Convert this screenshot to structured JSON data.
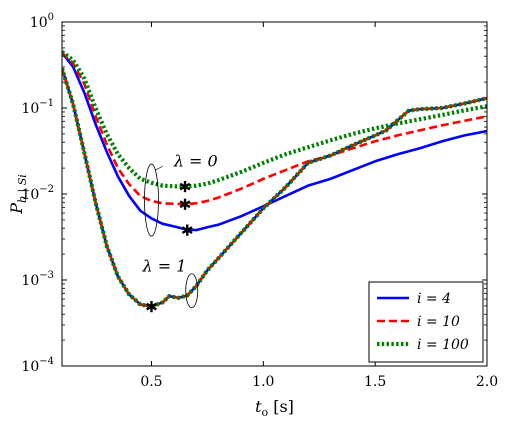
{
  "chart_data": {
    "type": "line",
    "xlabel": "t_o [s]",
    "ylabel": "P_b|S_i",
    "x_scale": "linear",
    "y_scale": "log",
    "xlim": [
      0.1,
      2.0
    ],
    "ylim": [
      0.0001,
      1
    ],
    "x_ticks": [
      0.5,
      1.0,
      1.5,
      2.0
    ],
    "x_tick_labels": [
      "0.5",
      "1.0",
      "1.5",
      "2.0"
    ],
    "y_ticks": [
      0.0001,
      0.001,
      0.01,
      0.1,
      1
    ],
    "y_tick_labels": [
      "10^-4",
      "10^-3",
      "10^-2",
      "10^-1",
      "10^0"
    ],
    "grid": false,
    "legend_position": "bottom-right",
    "annotations": [
      {
        "text": "λ = 0"
      },
      {
        "text": "λ = 1"
      }
    ],
    "series": [
      {
        "name": "i = 4",
        "color": "#0000ff",
        "dash": "solid",
        "group": "lambda0",
        "x": [
          0.1,
          0.15,
          0.2,
          0.25,
          0.3,
          0.35,
          0.4,
          0.45,
          0.5,
          0.55,
          0.6,
          0.65,
          0.7,
          0.75,
          0.8,
          0.9,
          1.0,
          1.1,
          1.2,
          1.3,
          1.4,
          1.5,
          1.6,
          1.7,
          1.8,
          1.9,
          2.0
        ],
        "y": [
          0.44,
          0.3,
          0.15,
          0.065,
          0.031,
          0.016,
          0.0095,
          0.0064,
          0.0052,
          0.0045,
          0.0042,
          0.0039,
          0.0038,
          0.0041,
          0.0044,
          0.0055,
          0.0072,
          0.0095,
          0.0125,
          0.015,
          0.019,
          0.024,
          0.029,
          0.034,
          0.041,
          0.048,
          0.054
        ]
      },
      {
        "name": "i = 10",
        "color": "#ff0000",
        "dash": "dashed",
        "group": "lambda0",
        "x": [
          0.1,
          0.15,
          0.2,
          0.25,
          0.3,
          0.35,
          0.4,
          0.45,
          0.5,
          0.55,
          0.6,
          0.65,
          0.7,
          0.75,
          0.8,
          0.9,
          1.0,
          1.1,
          1.2,
          1.3,
          1.4,
          1.5,
          1.6,
          1.7,
          1.8,
          1.9,
          2.0
        ],
        "y": [
          0.44,
          0.33,
          0.19,
          0.08,
          0.038,
          0.02,
          0.013,
          0.0095,
          0.0083,
          0.0078,
          0.0077,
          0.0076,
          0.0078,
          0.0083,
          0.0091,
          0.0115,
          0.015,
          0.019,
          0.024,
          0.028,
          0.034,
          0.041,
          0.048,
          0.055,
          0.063,
          0.071,
          0.08
        ]
      },
      {
        "name": "i = 100",
        "color": "#008000",
        "dash": "dotted",
        "group": "lambda0",
        "x": [
          0.1,
          0.15,
          0.2,
          0.25,
          0.3,
          0.35,
          0.4,
          0.45,
          0.5,
          0.55,
          0.6,
          0.65,
          0.7,
          0.75,
          0.8,
          0.9,
          1.0,
          1.1,
          1.2,
          1.3,
          1.4,
          1.5,
          1.6,
          1.7,
          1.8,
          1.9,
          2.0
        ],
        "y": [
          0.45,
          0.36,
          0.22,
          0.1,
          0.05,
          0.029,
          0.02,
          0.015,
          0.0135,
          0.0125,
          0.0123,
          0.0122,
          0.0125,
          0.0132,
          0.0145,
          0.018,
          0.023,
          0.029,
          0.035,
          0.042,
          0.05,
          0.058,
          0.066,
          0.074,
          0.083,
          0.094,
          0.105
        ]
      },
      {
        "name": "i = 4",
        "color": "#0000ff",
        "dash": "solid",
        "group": "lambda1",
        "x": [
          0.1,
          0.15,
          0.2,
          0.25,
          0.3,
          0.35,
          0.4,
          0.45,
          0.5,
          0.55,
          0.58,
          0.62,
          0.66,
          0.7,
          0.75,
          0.8,
          0.9,
          1.0,
          1.1,
          1.2,
          1.3,
          1.4,
          1.5,
          1.55,
          1.6,
          1.65,
          1.7,
          1.8,
          1.9,
          2.0
        ],
        "y": [
          0.29,
          0.11,
          0.03,
          0.008,
          0.0025,
          0.0011,
          0.00068,
          0.00052,
          0.00049,
          0.00055,
          0.00065,
          0.00062,
          0.00066,
          0.00085,
          0.0013,
          0.0018,
          0.0035,
          0.0068,
          0.012,
          0.023,
          0.028,
          0.037,
          0.048,
          0.055,
          0.072,
          0.093,
          0.097,
          0.1,
          0.113,
          0.13
        ]
      },
      {
        "name": "i = 10",
        "color": "#ff0000",
        "dash": "dashed",
        "group": "lambda1",
        "x": [
          0.1,
          0.15,
          0.2,
          0.25,
          0.3,
          0.35,
          0.4,
          0.45,
          0.5,
          0.55,
          0.58,
          0.62,
          0.66,
          0.7,
          0.75,
          0.8,
          0.9,
          1.0,
          1.1,
          1.2,
          1.3,
          1.4,
          1.5,
          1.55,
          1.6,
          1.65,
          1.7,
          1.8,
          1.9,
          2.0
        ],
        "y": [
          0.29,
          0.11,
          0.03,
          0.008,
          0.0025,
          0.0011,
          0.00068,
          0.00052,
          0.00049,
          0.00055,
          0.00065,
          0.00062,
          0.00066,
          0.00085,
          0.0013,
          0.0018,
          0.0035,
          0.0068,
          0.012,
          0.023,
          0.028,
          0.037,
          0.048,
          0.055,
          0.072,
          0.093,
          0.097,
          0.1,
          0.113,
          0.13
        ]
      },
      {
        "name": "i = 100",
        "color": "#008000",
        "dash": "dotted",
        "group": "lambda1",
        "x": [
          0.1,
          0.15,
          0.2,
          0.25,
          0.3,
          0.35,
          0.4,
          0.45,
          0.5,
          0.55,
          0.58,
          0.62,
          0.66,
          0.7,
          0.75,
          0.8,
          0.9,
          1.0,
          1.1,
          1.2,
          1.3,
          1.4,
          1.5,
          1.55,
          1.6,
          1.65,
          1.7,
          1.8,
          1.9,
          2.0
        ],
        "y": [
          0.29,
          0.11,
          0.03,
          0.008,
          0.0025,
          0.0011,
          0.00068,
          0.00052,
          0.00049,
          0.00055,
          0.00065,
          0.00062,
          0.00066,
          0.00085,
          0.0013,
          0.0018,
          0.0035,
          0.0068,
          0.012,
          0.023,
          0.028,
          0.037,
          0.048,
          0.055,
          0.072,
          0.093,
          0.097,
          0.1,
          0.113,
          0.13
        ]
      }
    ],
    "markers": [
      {
        "x": 0.66,
        "y": 0.0038,
        "symbol": "asterisk"
      },
      {
        "x": 0.65,
        "y": 0.0076,
        "symbol": "asterisk"
      },
      {
        "x": 0.65,
        "y": 0.0122,
        "symbol": "asterisk"
      },
      {
        "x": 0.5,
        "y": 0.00049,
        "symbol": "asterisk"
      }
    ],
    "legend": [
      "i = 4",
      "i = 10",
      "i = 100"
    ]
  }
}
